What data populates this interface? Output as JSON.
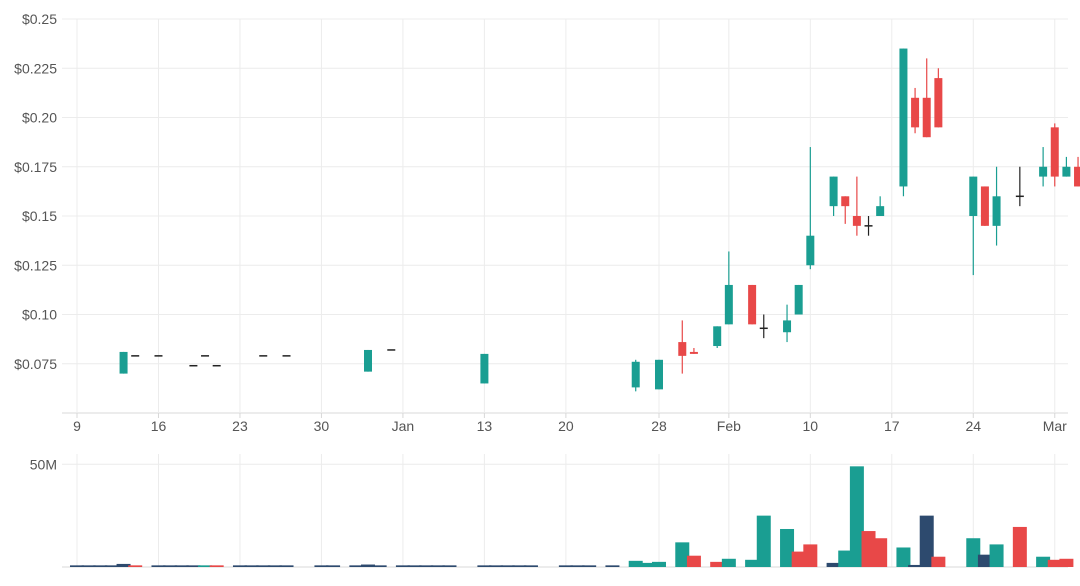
{
  "colors": {
    "up": "#1a9e92",
    "down": "#e84848",
    "neutral": "#222222",
    "volume_neutral": "#2d4a6e",
    "grid": "#ececec",
    "axis_text": "#555555"
  },
  "chart_data": [
    {
      "type": "candlestick",
      "title": "",
      "xlabel": "",
      "ylabel": "",
      "ylim": [
        0.05,
        0.25
      ],
      "grid": true,
      "x_ticks": [
        {
          "label": "9",
          "date": "2019-12-09"
        },
        {
          "label": "16",
          "date": "2019-12-16"
        },
        {
          "label": "23",
          "date": "2019-12-23"
        },
        {
          "label": "30",
          "date": "2019-12-30"
        },
        {
          "label": "Jan",
          "date": "2020-01-06"
        },
        {
          "label": "13",
          "date": "2020-01-13"
        },
        {
          "label": "20",
          "date": "2020-01-20"
        },
        {
          "label": "28",
          "date": "2020-01-28"
        },
        {
          "label": "Feb",
          "date": "2020-02-03"
        },
        {
          "label": "10",
          "date": "2020-02-10"
        },
        {
          "label": "17",
          "date": "2020-02-17"
        },
        {
          "label": "24",
          "date": "2020-02-24"
        },
        {
          "label": "Mar",
          "date": "2020-03-02"
        }
      ],
      "y_ticks": [
        {
          "label": "$0.075",
          "value": 0.075
        },
        {
          "label": "$0.10",
          "value": 0.1
        },
        {
          "label": "$0.125",
          "value": 0.125
        },
        {
          "label": "$0.15",
          "value": 0.15
        },
        {
          "label": "$0.175",
          "value": 0.175
        },
        {
          "label": "$0.20",
          "value": 0.2
        },
        {
          "label": "$0.225",
          "value": 0.225
        },
        {
          "label": "$0.25",
          "value": 0.25
        }
      ],
      "candles": [
        {
          "date": "2019-12-13",
          "open": 0.07,
          "high": 0.081,
          "low": 0.07,
          "close": 0.081
        },
        {
          "date": "2019-12-14",
          "open": 0.079,
          "high": 0.079,
          "low": 0.079,
          "close": 0.079
        },
        {
          "date": "2019-12-16",
          "open": 0.079,
          "high": 0.079,
          "low": 0.079,
          "close": 0.079
        },
        {
          "date": "2019-12-19",
          "open": 0.074,
          "high": 0.074,
          "low": 0.074,
          "close": 0.074
        },
        {
          "date": "2019-12-20",
          "open": 0.079,
          "high": 0.079,
          "low": 0.079,
          "close": 0.079
        },
        {
          "date": "2019-12-21",
          "open": 0.074,
          "high": 0.074,
          "low": 0.074,
          "close": 0.074
        },
        {
          "date": "2019-12-25",
          "open": 0.079,
          "high": 0.079,
          "low": 0.079,
          "close": 0.079
        },
        {
          "date": "2019-12-27",
          "open": 0.079,
          "high": 0.079,
          "low": 0.079,
          "close": 0.079
        },
        {
          "date": "2020-01-03",
          "open": 0.071,
          "high": 0.082,
          "low": 0.071,
          "close": 0.082
        },
        {
          "date": "2020-01-05",
          "open": 0.082,
          "high": 0.082,
          "low": 0.082,
          "close": 0.082
        },
        {
          "date": "2020-01-13",
          "open": 0.065,
          "high": 0.08,
          "low": 0.065,
          "close": 0.08
        },
        {
          "date": "2020-01-26",
          "open": 0.063,
          "high": 0.077,
          "low": 0.061,
          "close": 0.076
        },
        {
          "date": "2020-01-28",
          "open": 0.062,
          "high": 0.077,
          "low": 0.062,
          "close": 0.077
        },
        {
          "date": "2020-01-30",
          "open": 0.086,
          "high": 0.097,
          "low": 0.07,
          "close": 0.079
        },
        {
          "date": "2020-01-31",
          "open": 0.081,
          "high": 0.083,
          "low": 0.08,
          "close": 0.08
        },
        {
          "date": "2020-02-02",
          "open": 0.084,
          "high": 0.094,
          "low": 0.083,
          "close": 0.094
        },
        {
          "date": "2020-02-03",
          "open": 0.095,
          "high": 0.132,
          "low": 0.095,
          "close": 0.115
        },
        {
          "date": "2020-02-05",
          "open": 0.115,
          "high": 0.115,
          "low": 0.095,
          "close": 0.095
        },
        {
          "date": "2020-02-06",
          "open": 0.093,
          "high": 0.1,
          "low": 0.088,
          "close": 0.093
        },
        {
          "date": "2020-02-08",
          "open": 0.091,
          "high": 0.105,
          "low": 0.086,
          "close": 0.097
        },
        {
          "date": "2020-02-09",
          "open": 0.1,
          "high": 0.115,
          "low": 0.1,
          "close": 0.115
        },
        {
          "date": "2020-02-10",
          "open": 0.125,
          "high": 0.185,
          "low": 0.123,
          "close": 0.14
        },
        {
          "date": "2020-02-12",
          "open": 0.155,
          "high": 0.17,
          "low": 0.15,
          "close": 0.17
        },
        {
          "date": "2020-02-13",
          "open": 0.16,
          "high": 0.16,
          "low": 0.146,
          "close": 0.155
        },
        {
          "date": "2020-02-14",
          "open": 0.15,
          "high": 0.17,
          "low": 0.14,
          "close": 0.145
        },
        {
          "date": "2020-02-15",
          "open": 0.145,
          "high": 0.15,
          "low": 0.14,
          "close": 0.145
        },
        {
          "date": "2020-02-16",
          "open": 0.15,
          "high": 0.16,
          "low": 0.15,
          "close": 0.155
        },
        {
          "date": "2020-02-18",
          "open": 0.165,
          "high": 0.235,
          "low": 0.16,
          "close": 0.235
        },
        {
          "date": "2020-02-19",
          "open": 0.21,
          "high": 0.215,
          "low": 0.192,
          "close": 0.195
        },
        {
          "date": "2020-02-20",
          "open": 0.21,
          "high": 0.23,
          "low": 0.19,
          "close": 0.19
        },
        {
          "date": "2020-02-21",
          "open": 0.22,
          "high": 0.225,
          "low": 0.195,
          "close": 0.195
        },
        {
          "date": "2020-02-24",
          "open": 0.15,
          "high": 0.17,
          "low": 0.12,
          "close": 0.17
        },
        {
          "date": "2020-02-25",
          "open": 0.165,
          "high": 0.165,
          "low": 0.145,
          "close": 0.145
        },
        {
          "date": "2020-02-26",
          "open": 0.145,
          "high": 0.175,
          "low": 0.135,
          "close": 0.16
        },
        {
          "date": "2020-02-28",
          "open": 0.16,
          "high": 0.175,
          "low": 0.155,
          "close": 0.16
        },
        {
          "date": "2020-03-01",
          "open": 0.17,
          "high": 0.185,
          "low": 0.165,
          "close": 0.175
        },
        {
          "date": "2020-03-02",
          "open": 0.195,
          "high": 0.197,
          "low": 0.165,
          "close": 0.17
        },
        {
          "date": "2020-03-03",
          "open": 0.17,
          "high": 0.18,
          "low": 0.17,
          "close": 0.175
        },
        {
          "date": "2020-03-04",
          "open": 0.175,
          "high": 0.18,
          "low": 0.165,
          "close": 0.165
        },
        {
          "date": "2020-03-05",
          "open": 0.17,
          "high": 0.17,
          "low": 0.155,
          "close": 0.16
        }
      ]
    },
    {
      "type": "bar",
      "title": "",
      "ylabel": "",
      "ylim": [
        0,
        55
      ],
      "grid": true,
      "y_ticks": [
        {
          "label": "50M",
          "value": 50
        }
      ],
      "volume": [
        {
          "date": "2019-12-09",
          "value": 0.8,
          "dir": "neutral"
        },
        {
          "date": "2019-12-10",
          "value": 0.8,
          "dir": "neutral"
        },
        {
          "date": "2019-12-11",
          "value": 0.8,
          "dir": "neutral"
        },
        {
          "date": "2019-12-12",
          "value": 0.8,
          "dir": "neutral"
        },
        {
          "date": "2019-12-13",
          "value": 1.5,
          "dir": "neutral"
        },
        {
          "date": "2019-12-14",
          "value": 0.8,
          "dir": "down"
        },
        {
          "date": "2019-12-16",
          "value": 0.8,
          "dir": "neutral"
        },
        {
          "date": "2019-12-17",
          "value": 0.8,
          "dir": "neutral"
        },
        {
          "date": "2019-12-18",
          "value": 0.8,
          "dir": "neutral"
        },
        {
          "date": "2019-12-19",
          "value": 0.8,
          "dir": "neutral"
        },
        {
          "date": "2019-12-20",
          "value": 0.8,
          "dir": "up"
        },
        {
          "date": "2019-12-21",
          "value": 0.8,
          "dir": "down"
        },
        {
          "date": "2019-12-23",
          "value": 0.8,
          "dir": "neutral"
        },
        {
          "date": "2019-12-24",
          "value": 0.8,
          "dir": "neutral"
        },
        {
          "date": "2019-12-25",
          "value": 0.8,
          "dir": "neutral"
        },
        {
          "date": "2019-12-26",
          "value": 0.8,
          "dir": "neutral"
        },
        {
          "date": "2019-12-27",
          "value": 0.8,
          "dir": "neutral"
        },
        {
          "date": "2019-12-30",
          "value": 0.8,
          "dir": "neutral"
        },
        {
          "date": "2019-12-31",
          "value": 0.8,
          "dir": "neutral"
        },
        {
          "date": "2020-01-02",
          "value": 0.8,
          "dir": "neutral"
        },
        {
          "date": "2020-01-03",
          "value": 1.2,
          "dir": "neutral"
        },
        {
          "date": "2020-01-04",
          "value": 0.8,
          "dir": "neutral"
        },
        {
          "date": "2020-01-06",
          "value": 0.8,
          "dir": "neutral"
        },
        {
          "date": "2020-01-07",
          "value": 0.8,
          "dir": "neutral"
        },
        {
          "date": "2020-01-08",
          "value": 0.8,
          "dir": "neutral"
        },
        {
          "date": "2020-01-09",
          "value": 0.8,
          "dir": "neutral"
        },
        {
          "date": "2020-01-10",
          "value": 0.8,
          "dir": "neutral"
        },
        {
          "date": "2020-01-13",
          "value": 0.8,
          "dir": "neutral"
        },
        {
          "date": "2020-01-14",
          "value": 0.8,
          "dir": "neutral"
        },
        {
          "date": "2020-01-15",
          "value": 0.8,
          "dir": "neutral"
        },
        {
          "date": "2020-01-16",
          "value": 0.8,
          "dir": "neutral"
        },
        {
          "date": "2020-01-17",
          "value": 0.8,
          "dir": "neutral"
        },
        {
          "date": "2020-01-20",
          "value": 0.8,
          "dir": "neutral"
        },
        {
          "date": "2020-01-21",
          "value": 0.8,
          "dir": "neutral"
        },
        {
          "date": "2020-01-22",
          "value": 0.8,
          "dir": "neutral"
        },
        {
          "date": "2020-01-24",
          "value": 0.8,
          "dir": "neutral"
        },
        {
          "date": "2020-01-26",
          "value": 3,
          "dir": "up"
        },
        {
          "date": "2020-01-27",
          "value": 2,
          "dir": "up"
        },
        {
          "date": "2020-01-28",
          "value": 2.5,
          "dir": "up"
        },
        {
          "date": "2020-01-30",
          "value": 12,
          "dir": "up"
        },
        {
          "date": "2020-01-31",
          "value": 5.5,
          "dir": "down"
        },
        {
          "date": "2020-02-02",
          "value": 2.5,
          "dir": "down"
        },
        {
          "date": "2020-02-03",
          "value": 4,
          "dir": "up"
        },
        {
          "date": "2020-02-05",
          "value": 3.5,
          "dir": "up"
        },
        {
          "date": "2020-02-06",
          "value": 25,
          "dir": "up"
        },
        {
          "date": "2020-02-08",
          "value": 18.5,
          "dir": "up"
        },
        {
          "date": "2020-02-09",
          "value": 7.5,
          "dir": "down"
        },
        {
          "date": "2020-02-10",
          "value": 11,
          "dir": "down"
        },
        {
          "date": "2020-02-12",
          "value": 2,
          "dir": "neutral"
        },
        {
          "date": "2020-02-13",
          "value": 8,
          "dir": "up"
        },
        {
          "date": "2020-02-14",
          "value": 49,
          "dir": "up"
        },
        {
          "date": "2020-02-15",
          "value": 17.5,
          "dir": "down"
        },
        {
          "date": "2020-02-16",
          "value": 14,
          "dir": "down"
        },
        {
          "date": "2020-02-18",
          "value": 9.5,
          "dir": "up"
        },
        {
          "date": "2020-02-19",
          "value": 1,
          "dir": "neutral"
        },
        {
          "date": "2020-02-20",
          "value": 25,
          "dir": "neutral"
        },
        {
          "date": "2020-02-21",
          "value": 5,
          "dir": "down"
        },
        {
          "date": "2020-02-24",
          "value": 14,
          "dir": "up"
        },
        {
          "date": "2020-02-25",
          "value": 6,
          "dir": "neutral"
        },
        {
          "date": "2020-02-26",
          "value": 11,
          "dir": "up"
        },
        {
          "date": "2020-02-28",
          "value": 19.5,
          "dir": "down"
        },
        {
          "date": "2020-03-01",
          "value": 5,
          "dir": "up"
        },
        {
          "date": "2020-03-02",
          "value": 3.5,
          "dir": "down"
        },
        {
          "date": "2020-03-03",
          "value": 4,
          "dir": "down"
        }
      ]
    }
  ]
}
